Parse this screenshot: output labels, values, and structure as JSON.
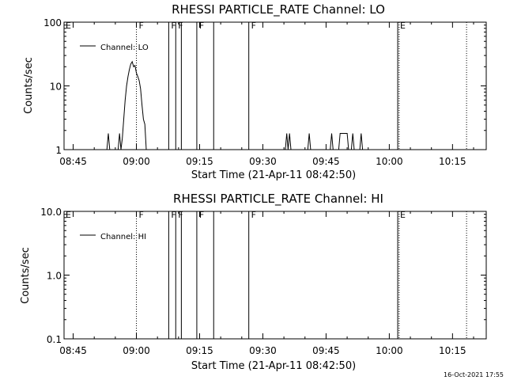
{
  "timestamp": "16-Oct-2021 17:55",
  "chart_data": [
    {
      "type": "line",
      "title": "RHESSI PARTICLE_RATE Channel: LO",
      "xlabel": "Start Time (21-Apr-11 08:42:50)",
      "ylabel": "Counts/sec",
      "yscale": "log",
      "ylim": [
        1,
        100
      ],
      "yticks": [
        1,
        10,
        100
      ],
      "ytick_labels": [
        "1",
        "10",
        "100"
      ],
      "xlim": [
        "08:42:50",
        "10:23:00"
      ],
      "xticks": [
        "08:45",
        "09:00",
        "09:15",
        "09:30",
        "09:45",
        "10:00",
        "10:15"
      ],
      "legend": {
        "label": "Channel: LO",
        "position": "top-left"
      },
      "series": [
        {
          "name": "Channel: LO",
          "points": [
            [
              "08:53:00",
              1
            ],
            [
              "08:53:20",
              1.8
            ],
            [
              "08:53:40",
              1
            ],
            [
              "08:55:40",
              1
            ],
            [
              "08:56:00",
              1.8
            ],
            [
              "08:56:20",
              1
            ],
            [
              "08:56:40",
              1.5
            ],
            [
              "08:57:00",
              3
            ],
            [
              "08:57:20",
              6
            ],
            [
              "08:57:40",
              10
            ],
            [
              "08:58:00",
              14
            ],
            [
              "08:58:20",
              18
            ],
            [
              "08:58:40",
              22
            ],
            [
              "08:59:00",
              24
            ],
            [
              "08:59:20",
              20
            ],
            [
              "08:59:40",
              21
            ],
            [
              "09:00:00",
              16
            ],
            [
              "09:00:20",
              14
            ],
            [
              "09:00:40",
              12
            ],
            [
              "09:01:00",
              9
            ],
            [
              "09:01:20",
              5
            ],
            [
              "09:01:40",
              3
            ],
            [
              "09:02:00",
              2.5
            ],
            [
              "09:02:20",
              1
            ],
            [
              "09:03:00",
              1
            ],
            [
              "09:35:20",
              1
            ],
            [
              "09:35:40",
              1.8
            ],
            [
              "09:36:00",
              1
            ],
            [
              "09:36:20",
              1.8
            ],
            [
              "09:36:40",
              1
            ],
            [
              "09:40:40",
              1
            ],
            [
              "09:41:00",
              1.8
            ],
            [
              "09:41:20",
              1
            ],
            [
              "09:46:00",
              1
            ],
            [
              "09:46:20",
              1.8
            ],
            [
              "09:46:40",
              1
            ],
            [
              "09:48:00",
              1
            ],
            [
              "09:48:20",
              1.8
            ],
            [
              "09:50:00",
              1.8
            ],
            [
              "09:50:20",
              1
            ],
            [
              "09:51:00",
              1
            ],
            [
              "09:51:20",
              1.8
            ],
            [
              "09:51:40",
              1
            ],
            [
              "09:53:00",
              1
            ],
            [
              "09:53:20",
              1.8
            ],
            [
              "09:53:40",
              1
            ]
          ]
        }
      ],
      "event_lines": [
        {
          "time": "09:00:00",
          "style": "dotted",
          "flag": "F"
        },
        {
          "time": "09:07:40",
          "style": "solid",
          "flag": "F"
        },
        {
          "time": "09:09:20",
          "style": "solid",
          "flag": "F"
        },
        {
          "time": "09:10:40",
          "style": "solid",
          "flag": ""
        },
        {
          "time": "09:14:20",
          "style": "solid",
          "flag": "F"
        },
        {
          "time": "09:18:20",
          "style": "solid",
          "flag": ""
        },
        {
          "time": "09:26:40",
          "style": "solid",
          "flag": "F"
        },
        {
          "time": "10:02:00",
          "style": "solid",
          "flag": "E"
        },
        {
          "time": "10:02:20",
          "style": "dotted",
          "flag": ""
        },
        {
          "time": "10:18:20",
          "style": "dotted",
          "flag": ""
        }
      ],
      "start_flag": "E"
    },
    {
      "type": "line",
      "title": "RHESSI PARTICLE_RATE Channel: HI",
      "xlabel": "Start Time (21-Apr-11 08:42:50)",
      "ylabel": "Counts/sec",
      "yscale": "log",
      "ylim": [
        0.1,
        10
      ],
      "yticks": [
        0.1,
        1,
        10
      ],
      "ytick_labels": [
        "0.1",
        "1.0",
        "10.0"
      ],
      "xlim": [
        "08:42:50",
        "10:23:00"
      ],
      "xticks": [
        "08:45",
        "09:00",
        "09:15",
        "09:30",
        "09:45",
        "10:00",
        "10:15"
      ],
      "legend": {
        "label": "Channel: HI",
        "position": "top-left"
      },
      "series": [
        {
          "name": "Channel: HI",
          "points": []
        }
      ],
      "event_lines": [
        {
          "time": "09:00:00",
          "style": "dotted",
          "flag": "F"
        },
        {
          "time": "09:07:40",
          "style": "solid",
          "flag": "F"
        },
        {
          "time": "09:09:20",
          "style": "solid",
          "flag": "F"
        },
        {
          "time": "09:10:40",
          "style": "solid",
          "flag": ""
        },
        {
          "time": "09:14:20",
          "style": "solid",
          "flag": "F"
        },
        {
          "time": "09:18:20",
          "style": "solid",
          "flag": ""
        },
        {
          "time": "09:26:40",
          "style": "solid",
          "flag": "F"
        },
        {
          "time": "10:02:00",
          "style": "solid",
          "flag": "E"
        },
        {
          "time": "10:02:20",
          "style": "dotted",
          "flag": ""
        },
        {
          "time": "10:18:20",
          "style": "dotted",
          "flag": ""
        }
      ],
      "start_flag": "E"
    }
  ]
}
